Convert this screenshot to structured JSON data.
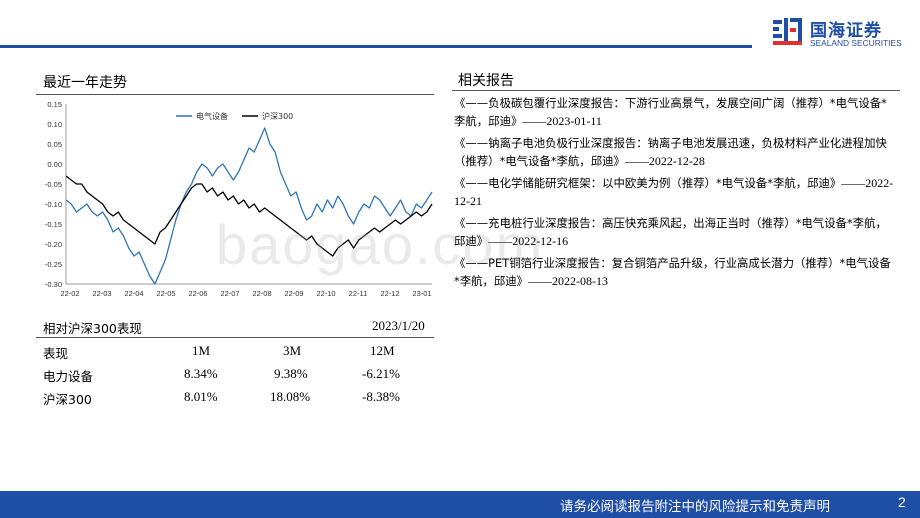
{
  "header": {
    "brand_cn": "国海证券",
    "brand_en": "SEALAND SECURITIES",
    "accent_color": "#1f4ea6"
  },
  "trend": {
    "title": "最近一年走势"
  },
  "chart_data": {
    "type": "line",
    "ylim": [
      -0.3,
      0.15
    ],
    "yticks": [
      "0.15",
      "0.10",
      "0.05",
      "0.00",
      "-0.05",
      "-0.10",
      "-0.15",
      "-0.20",
      "-0.25",
      "-0.30"
    ],
    "ytick_values": [
      0.15,
      0.1,
      0.05,
      0.0,
      -0.05,
      -0.1,
      -0.15,
      -0.2,
      -0.25,
      -0.3
    ],
    "xticks": [
      "22-02",
      "22-03",
      "22-04",
      "22-05",
      "22-06",
      "22-07",
      "22-08",
      "22-09",
      "22-10",
      "22-11",
      "22-12",
      "23-01"
    ],
    "legend_position": "top-center",
    "series": [
      {
        "name": "电气设备",
        "color": "#2e75b6",
        "values": [
          -0.09,
          -0.1,
          -0.12,
          -0.11,
          -0.1,
          -0.12,
          -0.13,
          -0.12,
          -0.14,
          -0.17,
          -0.16,
          -0.18,
          -0.21,
          -0.23,
          -0.22,
          -0.25,
          -0.28,
          -0.3,
          -0.27,
          -0.24,
          -0.19,
          -0.14,
          -0.1,
          -0.07,
          -0.05,
          -0.02,
          0.0,
          -0.01,
          -0.03,
          -0.01,
          0.0,
          -0.02,
          -0.04,
          -0.02,
          0.01,
          0.04,
          0.03,
          0.06,
          0.09,
          0.05,
          0.03,
          -0.02,
          -0.05,
          -0.08,
          -0.07,
          -0.11,
          -0.14,
          -0.13,
          -0.1,
          -0.12,
          -0.09,
          -0.11,
          -0.08,
          -0.1,
          -0.13,
          -0.15,
          -0.12,
          -0.1,
          -0.11,
          -0.08,
          -0.09,
          -0.11,
          -0.13,
          -0.11,
          -0.09,
          -0.12,
          -0.13,
          -0.1,
          -0.11,
          -0.09,
          -0.07
        ]
      },
      {
        "name": "沪深300",
        "color": "#000000",
        "values": [
          -0.03,
          -0.04,
          -0.05,
          -0.05,
          -0.07,
          -0.08,
          -0.09,
          -0.1,
          -0.12,
          -0.13,
          -0.12,
          -0.14,
          -0.15,
          -0.16,
          -0.17,
          -0.18,
          -0.19,
          -0.2,
          -0.17,
          -0.16,
          -0.14,
          -0.12,
          -0.1,
          -0.08,
          -0.06,
          -0.05,
          -0.05,
          -0.07,
          -0.06,
          -0.08,
          -0.07,
          -0.09,
          -0.08,
          -0.1,
          -0.09,
          -0.11,
          -0.1,
          -0.12,
          -0.11,
          -0.12,
          -0.13,
          -0.14,
          -0.15,
          -0.16,
          -0.17,
          -0.18,
          -0.19,
          -0.18,
          -0.2,
          -0.21,
          -0.22,
          -0.23,
          -0.21,
          -0.2,
          -0.19,
          -0.21,
          -0.19,
          -0.18,
          -0.17,
          -0.16,
          -0.17,
          -0.16,
          -0.15,
          -0.14,
          -0.15,
          -0.14,
          -0.13,
          -0.12,
          -0.13,
          -0.12,
          -0.1
        ]
      }
    ]
  },
  "perf_table": {
    "title": "相对沪深300表现",
    "date": "2023/1/20",
    "headers": [
      "表现",
      "1M",
      "3M",
      "12M"
    ],
    "rows": [
      [
        "电力设备",
        "8.34%",
        "9.38%",
        "-6.21%"
      ],
      [
        "沪深300",
        "8.01%",
        "18.08%",
        "-8.38%"
      ]
    ]
  },
  "related": {
    "title": "相关报告",
    "items": [
      {
        "text": "《——负极碳包覆行业深度报告：下游行业高景气，发展空间广阔（推荐）*电气设备*李航，邱迪》",
        "date": "——2023-01-11"
      },
      {
        "text": "《——钠离子电池负极行业深度报告：钠离子电池发展迅速，负极材料产业化进程加快（推荐）*电气设备*李航，邱迪》",
        "date": "——2022-12-28"
      },
      {
        "text": "《——电化学储能研究框架：以中欧美为例（推荐）*电气设备*李航，邱迪》",
        "date": "——2022-12-21"
      },
      {
        "text": "《——充电桩行业深度报告：高压快充乘风起，出海正当时（推荐）*电气设备*李航，邱迪》",
        "date": "——2022-12-16"
      },
      {
        "text": "《——PET铜箔行业深度报告：复合铜箔产品升级，行业高成长潜力（推荐）*电气设备*李航，邱迪》",
        "date": "——2022-08-13"
      }
    ]
  },
  "watermark": "baogao.com",
  "footer": {
    "disclaimer": "请务必阅读报告附注中的风险提示和免责声明",
    "page": "2"
  }
}
